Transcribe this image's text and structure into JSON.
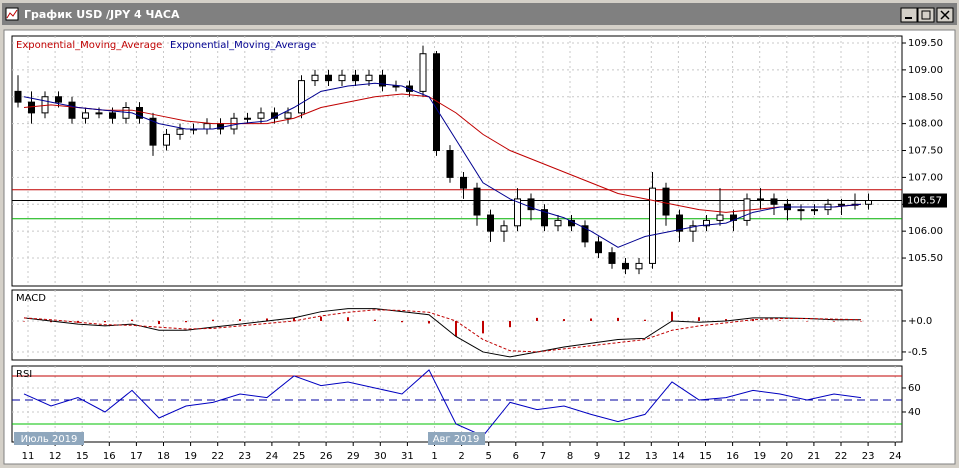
{
  "window": {
    "title": "График USD /JPY  4 ЧАСА"
  },
  "x_axis": {
    "categories": [
      "11",
      "12",
      "15",
      "16",
      "17",
      "18",
      "19",
      "22",
      "23",
      "24",
      "25",
      "26",
      "29",
      "30",
      "31",
      "1",
      "2",
      "5",
      "6",
      "7",
      "8",
      "9",
      "12",
      "13",
      "14",
      "15",
      "16",
      "19",
      "20",
      "21",
      "22",
      "23",
      "24"
    ],
    "periods": [
      "Июль 2019",
      "Авг 2019"
    ]
  },
  "chart_data": [
    {
      "type": "candlestick",
      "open": [
        108.6,
        108.4,
        108.2,
        108.5,
        108.4,
        108.1,
        108.2,
        108.2,
        108.1,
        108.3,
        108.1,
        107.6,
        107.8,
        107.9,
        107.9,
        108.0,
        107.9,
        108.1,
        108.1,
        108.2,
        108.1,
        108.2,
        108.8,
        108.9,
        108.8,
        108.9,
        108.8,
        108.9,
        108.7,
        108.7,
        108.6,
        109.3,
        107.5,
        107.0,
        106.8,
        106.3,
        106.0,
        106.1,
        106.6,
        106.4,
        106.1,
        106.2,
        106.1,
        105.8,
        105.6,
        105.4,
        105.3,
        105.4,
        106.8,
        106.3,
        106.0,
        106.1,
        106.2,
        106.3,
        106.2,
        106.6,
        106.6,
        106.5,
        106.4,
        106.4,
        106.4,
        106.5,
        106.5,
        106.5
      ],
      "high": [
        108.9,
        108.6,
        108.6,
        108.6,
        108.5,
        108.3,
        108.3,
        108.3,
        108.4,
        108.4,
        108.2,
        107.9,
        108.0,
        108.0,
        108.1,
        108.1,
        108.2,
        108.2,
        108.3,
        108.3,
        108.3,
        108.9,
        109.0,
        109.0,
        109.0,
        109.0,
        109.0,
        109.0,
        108.8,
        108.8,
        109.45,
        109.35,
        107.6,
        107.1,
        106.9,
        106.4,
        106.2,
        106.8,
        106.7,
        106.5,
        106.3,
        106.3,
        106.2,
        105.9,
        105.7,
        105.5,
        105.5,
        107.1,
        106.9,
        106.4,
        106.2,
        106.3,
        106.8,
        106.4,
        106.7,
        106.8,
        106.7,
        106.6,
        106.5,
        106.5,
        106.6,
        106.6,
        106.7,
        106.7
      ],
      "low": [
        108.3,
        108.0,
        108.1,
        108.3,
        108.0,
        108.0,
        108.1,
        108.0,
        108.0,
        108.0,
        107.4,
        107.5,
        107.7,
        107.8,
        107.8,
        107.8,
        107.8,
        108.0,
        108.0,
        108.0,
        108.0,
        108.1,
        108.7,
        108.7,
        108.7,
        108.7,
        108.7,
        108.6,
        108.6,
        108.5,
        108.5,
        107.4,
        106.9,
        106.6,
        106.1,
        105.8,
        105.8,
        106.0,
        106.2,
        106.0,
        106.0,
        106.0,
        105.7,
        105.5,
        105.3,
        105.2,
        105.2,
        105.3,
        106.1,
        105.8,
        105.8,
        106.0,
        106.1,
        106.0,
        106.1,
        106.4,
        106.3,
        106.2,
        106.2,
        106.3,
        106.3,
        106.3,
        106.4,
        106.4
      ],
      "close": [
        108.4,
        108.2,
        108.5,
        108.4,
        108.1,
        108.2,
        108.2,
        108.1,
        108.3,
        108.1,
        107.6,
        107.8,
        107.9,
        107.9,
        108.0,
        107.9,
        108.1,
        108.1,
        108.2,
        108.1,
        108.2,
        108.8,
        108.9,
        108.8,
        108.9,
        108.8,
        108.9,
        108.7,
        108.7,
        108.6,
        109.3,
        107.5,
        107.0,
        106.8,
        106.3,
        106.0,
        106.1,
        106.6,
        106.4,
        106.1,
        106.2,
        106.1,
        105.8,
        105.6,
        105.4,
        105.3,
        105.4,
        106.8,
        106.3,
        106.0,
        106.1,
        106.2,
        106.3,
        106.2,
        106.6,
        106.6,
        106.5,
        106.4,
        106.4,
        106.4,
        106.5,
        106.5,
        106.5,
        106.57
      ],
      "series": [
        {
          "name": "Exponential_Moving_Average",
          "color": "#c00000",
          "values": [
            108.3,
            108.35,
            108.3,
            108.25,
            108.25,
            108.15,
            108.05,
            108.0,
            108.0,
            108.0,
            108.1,
            108.3,
            108.4,
            108.5,
            108.55,
            108.5,
            108.2,
            107.8,
            107.5,
            107.3,
            107.1,
            106.9,
            106.7,
            106.6,
            106.5,
            106.4,
            106.35,
            106.4,
            106.45,
            106.45,
            106.45,
            106.5
          ]
        },
        {
          "name": "Exponential_Moving_Average",
          "color": "#000090",
          "values": [
            108.5,
            108.4,
            108.3,
            108.25,
            108.2,
            108.0,
            107.9,
            107.9,
            108.0,
            108.05,
            108.3,
            108.6,
            108.7,
            108.75,
            108.7,
            108.5,
            107.7,
            106.9,
            106.6,
            106.4,
            106.25,
            106.0,
            105.7,
            105.9,
            106.0,
            106.1,
            106.15,
            106.35,
            106.45,
            106.45,
            106.45,
            106.5
          ]
        }
      ],
      "hlines": [
        {
          "value": 106.77,
          "color": "#c00000"
        },
        {
          "value": 106.57,
          "color": "#000000"
        },
        {
          "value": 106.23,
          "color": "#00b000"
        }
      ],
      "last_price": 106.57,
      "ylim": [
        104.98,
        109.63
      ],
      "yticks": [
        {
          "value": 105.5,
          "label": "105.50"
        },
        {
          "value": 106,
          "label": "106.00"
        },
        {
          "value": 106.5,
          "label": "106.50"
        },
        {
          "value": 107,
          "label": "107.00"
        },
        {
          "value": 107.5,
          "label": "107.50"
        },
        {
          "value": 108,
          "label": "108.00"
        },
        {
          "value": 108.5,
          "label": "108.50"
        },
        {
          "value": 109,
          "label": "109.00"
        },
        {
          "value": 109.5,
          "label": "109.50"
        }
      ],
      "grid": true
    },
    {
      "type": "macd",
      "title": "MACD",
      "histogram": {
        "color": "#c00000",
        "values": [
          0.0,
          -0.02,
          -0.03,
          -0.02,
          0.02,
          -0.05,
          -0.02,
          0.02,
          0.03,
          0.04,
          0.05,
          0.07,
          0.06,
          0.02,
          -0.02,
          -0.04,
          -0.25,
          -0.2,
          -0.1,
          0.05,
          0.03,
          0.04,
          0.05,
          0.02,
          0.15,
          0.06,
          0.03,
          0.03,
          0.01,
          0.0,
          -0.01,
          0.0
        ]
      },
      "series": [
        {
          "color": "#000000",
          "values": [
            0.05,
            0.0,
            -0.05,
            -0.08,
            -0.05,
            -0.15,
            -0.15,
            -0.1,
            -0.05,
            0.0,
            0.05,
            0.15,
            0.2,
            0.2,
            0.15,
            0.1,
            -0.25,
            -0.5,
            -0.58,
            -0.5,
            -0.42,
            -0.36,
            -0.3,
            -0.28,
            0.0,
            -0.02,
            0.0,
            0.05,
            0.05,
            0.04,
            0.02,
            0.02
          ]
        },
        {
          "color": "#c00000",
          "values": [
            0.05,
            0.02,
            -0.02,
            -0.06,
            -0.07,
            -0.1,
            -0.13,
            -0.12,
            -0.08,
            -0.04,
            0.0,
            0.08,
            0.14,
            0.18,
            0.17,
            0.14,
            0.0,
            -0.3,
            -0.48,
            -0.5,
            -0.45,
            -0.4,
            -0.35,
            -0.3,
            -0.15,
            -0.08,
            -0.03,
            0.02,
            0.04,
            0.04,
            0.03,
            0.02
          ]
        }
      ],
      "ylim": [
        -0.63,
        0.5
      ],
      "yticks": [
        {
          "value": 0,
          "label": "+0.0"
        },
        {
          "value": -0.5,
          "label": "-0.5"
        }
      ],
      "grid": true
    },
    {
      "type": "rsi",
      "title": "RSI",
      "series": [
        {
          "color": "#0000c0",
          "values": [
            55,
            45,
            52,
            40,
            58,
            35,
            45,
            48,
            55,
            52,
            70,
            62,
            65,
            60,
            55,
            75,
            30,
            20,
            48,
            42,
            45,
            38,
            32,
            38,
            65,
            50,
            52,
            58,
            55,
            50,
            55,
            52
          ]
        }
      ],
      "levels": [
        {
          "value": 70,
          "color": "#c00000"
        },
        {
          "value": 50,
          "color": "#0000a0",
          "dashed": true
        },
        {
          "value": 30,
          "color": "#00c000"
        }
      ],
      "ylim": [
        15,
        78.3
      ],
      "yticks": [
        40,
        60
      ],
      "grid": true
    }
  ]
}
